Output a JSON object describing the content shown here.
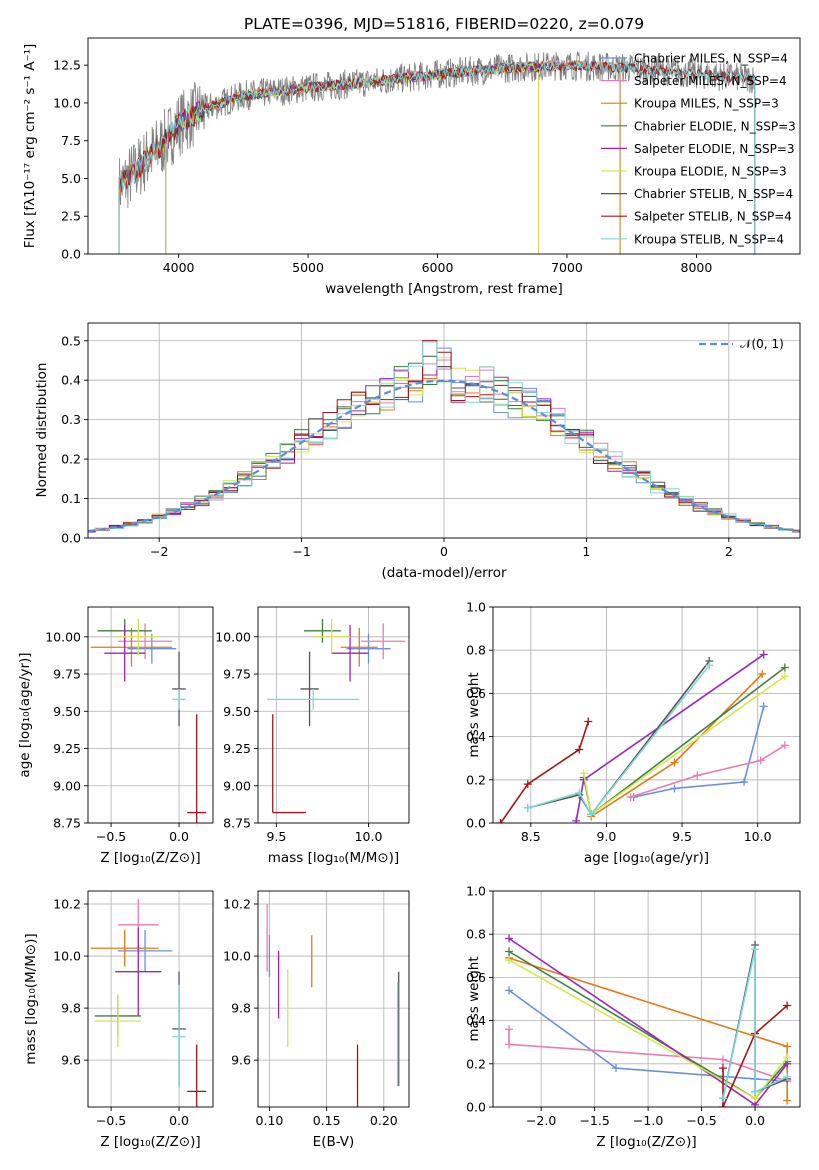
{
  "colors": {
    "chabrier_miles": "#6a8fe0",
    "salpeter_miles": "#e87bb5",
    "kroupa_miles": "#e07b18",
    "chabrier_elodie": "#3f7f3f",
    "salpeter_elodie": "#9b26b6",
    "kroupa_elodie": "#d6e64d",
    "chabrier_stelib": "#555555",
    "salpeter_stelib": "#a0151a",
    "kroupa_stelib": "#7fd8d8",
    "gauss": "#5b8ed8",
    "spectrum": "#808080"
  },
  "chart_data": [
    {
      "id": "spectrum",
      "type": "line",
      "title": "PLATE=0396, MJD=51816, FIBERID=0220, z=0.079",
      "xlabel": "wavelength [Angstrom, rest frame]",
      "ylabel": "Flux [fλ10⁻¹⁷ erg cm⁻² s⁻¹ A⁻¹]",
      "xlim": [
        3300,
        8800
      ],
      "ylim": [
        0,
        14.3
      ],
      "xticks": [
        "4000",
        "5000",
        "6000",
        "7000",
        "8000"
      ],
      "yticks": [
        "0.0",
        "2.5",
        "5.0",
        "7.5",
        "10.0",
        "12.5"
      ],
      "grid": false,
      "legend_position": "right",
      "legend": [
        "Chabrier MILES, N_SSP=4",
        "Salpeter MILES, N_SSP=4",
        "Kroupa MILES, N_SSP=3",
        "Chabrier ELODIE, N_SSP=3",
        "Salpeter ELODIE, N_SSP=3",
        "Kroupa ELODIE, N_SSP=3",
        "Chabrier STELIB, N_SSP=4",
        "Salpeter STELIB, N_SSP=4",
        "Kroupa STELIB, N_SSP=4"
      ],
      "data_trend": {
        "wavelength": [
          3550,
          3700,
          3900,
          4000,
          4200,
          4500,
          5000,
          5500,
          6000,
          6500,
          7000,
          7500,
          8000,
          8450
        ],
        "flux": [
          4.5,
          5.8,
          7.5,
          8.6,
          9.6,
          10.5,
          11.0,
          11.4,
          11.9,
          12.3,
          12.5,
          12.3,
          11.9,
          11.6
        ]
      }
    },
    {
      "id": "residuals",
      "type": "histogram",
      "xlabel": "(data-model)/error",
      "ylabel": "Normed distribution",
      "xlim": [
        -2.5,
        2.5
      ],
      "ylim": [
        0,
        0.545
      ],
      "xticks": [
        "−2",
        "−1",
        "0",
        "1",
        "2"
      ],
      "yticks": [
        "0.0",
        "0.1",
        "0.2",
        "0.3",
        "0.4",
        "0.5"
      ],
      "grid": true,
      "legend": [
        "𝒩(0, 1)"
      ],
      "legend_position": "top-right",
      "bin_width": 0.1,
      "reference_curve": "normal(0,1)"
    },
    {
      "id": "age_vs_Z",
      "type": "errorbar",
      "xlabel": "Z [log₁₀(Z/Z⊙)]",
      "ylabel": "age  [log₁₀(age/yr)]",
      "xlim": [
        -0.67,
        0.25
      ],
      "ylim": [
        8.75,
        10.2
      ],
      "xticks": [
        "−0.5",
        "0.0"
      ],
      "yticks": [
        "8.75",
        "9.00",
        "9.25",
        "9.50",
        "9.75",
        "10.00"
      ],
      "grid": true,
      "points": [
        {
          "c": "chabrier_miles",
          "x": -0.2,
          "xerr": 0.18,
          "y": 9.92,
          "yerr": 0.1
        },
        {
          "c": "salpeter_miles",
          "x": -0.25,
          "xerr": 0.2,
          "y": 9.97,
          "yerr": 0.12
        },
        {
          "c": "kroupa_miles",
          "x": -0.35,
          "xerr": 0.3,
          "y": 9.93,
          "yerr": 0.13
        },
        {
          "c": "chabrier_elodie",
          "x": -0.4,
          "xerr": 0.2,
          "y": 10.04,
          "yerr": 0.08
        },
        {
          "c": "salpeter_elodie",
          "x": -0.4,
          "xerr": 0.15,
          "y": 9.89,
          "yerr": 0.19
        },
        {
          "c": "kroupa_elodie",
          "x": -0.3,
          "xerr": 0.15,
          "y": 10.0,
          "yerr": 0.12
        },
        {
          "c": "chabrier_stelib",
          "x": 0.0,
          "xerr": 0.05,
          "y": 9.65,
          "yerr": 0.25
        },
        {
          "c": "salpeter_stelib",
          "x": 0.13,
          "xerr": 0.07,
          "y": 8.82,
          "yerr": 0.66
        },
        {
          "c": "kroupa_stelib",
          "x": 0.0,
          "xerr": 0.05,
          "y": 9.58,
          "yerr": 0.07
        }
      ]
    },
    {
      "id": "age_vs_mass",
      "type": "errorbar",
      "xlabel": "mass [log₁₀(M/M⊙)]",
      "ylabel": "",
      "xlim": [
        9.4,
        10.22
      ],
      "ylim": [
        8.75,
        10.2
      ],
      "xticks": [
        "9.5",
        "10.0"
      ],
      "yticks": [
        "8.75",
        "9.00",
        "9.25",
        "9.50",
        "9.75",
        "10.00"
      ],
      "grid": true,
      "points": [
        {
          "c": "chabrier_miles",
          "x": 10.0,
          "xerr": 0.12,
          "y": 9.92,
          "yerr": 0.1
        },
        {
          "c": "salpeter_miles",
          "x": 10.08,
          "xerr": 0.12,
          "y": 9.97,
          "yerr": 0.12
        },
        {
          "c": "kroupa_miles",
          "x": 9.95,
          "xerr": 0.1,
          "y": 9.93,
          "yerr": 0.13
        },
        {
          "c": "chabrier_elodie",
          "x": 9.75,
          "xerr": 0.1,
          "y": 10.04,
          "yerr": 0.08
        },
        {
          "c": "salpeter_elodie",
          "x": 9.9,
          "xerr": 0.1,
          "y": 9.89,
          "yerr": 0.19
        },
        {
          "c": "kroupa_elodie",
          "x": 9.8,
          "xerr": 0.1,
          "y": 10.0,
          "yerr": 0.12
        },
        {
          "c": "chabrier_stelib",
          "x": 9.68,
          "xerr": 0.05,
          "y": 9.65,
          "yerr": 0.25
        },
        {
          "c": "salpeter_stelib",
          "x": 9.48,
          "xerr": 0.0,
          "y": 9.15,
          "yerr": 0.33
        },
        {
          "c": "salpeter_stelib",
          "x": 9.57,
          "xerr": 0.09,
          "y": 8.82,
          "yerr": 0.0
        },
        {
          "c": "kroupa_stelib",
          "x": 9.7,
          "xerr": 0.25,
          "y": 9.58,
          "yerr": 0.07
        }
      ]
    },
    {
      "id": "mass_weight_vs_age",
      "type": "line",
      "xlabel": "age  [log₁₀(age/yr)]",
      "ylabel": "mass weight",
      "xlim": [
        8.25,
        10.28
      ],
      "ylim": [
        0,
        1.0
      ],
      "xticks": [
        "8.5",
        "9.0",
        "9.5",
        "10.0"
      ],
      "yticks": [
        "0.0",
        "0.2",
        "0.4",
        "0.6",
        "0.8",
        "1.0"
      ],
      "grid": true,
      "series": [
        {
          "c": "chabrier_miles",
          "x": [
            9.18,
            9.45,
            9.91,
            10.04
          ],
          "y": [
            0.12,
            0.16,
            0.19,
            0.54
          ]
        },
        {
          "c": "salpeter_miles",
          "x": [
            9.16,
            9.6,
            10.02,
            10.18
          ],
          "y": [
            0.12,
            0.22,
            0.29,
            0.36
          ]
        },
        {
          "c": "kroupa_miles",
          "x": [
            8.9,
            9.45,
            10.03
          ],
          "y": [
            0.03,
            0.28,
            0.69
          ]
        },
        {
          "c": "chabrier_elodie",
          "x": [
            8.85,
            8.9,
            10.18
          ],
          "y": [
            0.21,
            0.04,
            0.72
          ]
        },
        {
          "c": "salpeter_elodie",
          "x": [
            8.8,
            8.85,
            10.04
          ],
          "y": [
            0.01,
            0.2,
            0.78
          ]
        },
        {
          "c": "kroupa_elodie",
          "x": [
            8.85,
            8.9,
            10.18
          ],
          "y": [
            0.23,
            0.04,
            0.68
          ]
        },
        {
          "c": "chabrier_stelib",
          "x": [
            8.48,
            8.82,
            8.9,
            9.68
          ],
          "y": [
            0.07,
            0.13,
            0.04,
            0.75
          ]
        },
        {
          "c": "salpeter_stelib",
          "x": [
            8.3,
            8.48,
            8.82,
            8.88
          ],
          "y": [
            0.0,
            0.18,
            0.34,
            0.47
          ]
        },
        {
          "c": "kroupa_stelib",
          "x": [
            8.48,
            8.82,
            8.9,
            9.68
          ],
          "y": [
            0.07,
            0.14,
            0.04,
            0.73
          ]
        }
      ]
    },
    {
      "id": "mass_vs_Z",
      "type": "errorbar",
      "xlabel": "Z [log₁₀(Z/Z⊙)]",
      "ylabel": "mass [log₁₀(M/M⊙)]",
      "xlim": [
        -0.67,
        0.25
      ],
      "ylim": [
        9.42,
        10.25
      ],
      "xticks": [
        "−0.5",
        "0.0"
      ],
      "yticks": [
        "9.6",
        "9.8",
        "10.0",
        "10.2"
      ],
      "grid": true,
      "points": [
        {
          "c": "chabrier_miles",
          "x": -0.25,
          "xerr": 0.2,
          "y": 10.02,
          "yerr": 0.08
        },
        {
          "c": "salpeter_miles",
          "x": -0.3,
          "xerr": 0.15,
          "y": 10.12,
          "yerr": 0.1
        },
        {
          "c": "kroupa_miles",
          "x": -0.4,
          "xerr": 0.25,
          "y": 10.03,
          "yerr": 0.07
        },
        {
          "c": "chabrier_elodie",
          "x": -0.45,
          "xerr": 0.17,
          "y": 9.77,
          "yerr": 0.08
        },
        {
          "c": "salpeter_elodie",
          "x": -0.3,
          "xerr": 0.17,
          "y": 9.94,
          "yerr": 0.17
        },
        {
          "c": "kroupa_elodie",
          "x": -0.45,
          "xerr": 0.17,
          "y": 9.75,
          "yerr": 0.1
        },
        {
          "c": "chabrier_stelib",
          "x": 0.0,
          "xerr": 0.05,
          "y": 9.72,
          "yerr": 0.22
        },
        {
          "c": "salpeter_stelib",
          "x": 0.13,
          "xerr": 0.07,
          "y": 9.48,
          "yerr": 0.18
        },
        {
          "c": "kroupa_stelib",
          "x": 0.0,
          "xerr": 0.05,
          "y": 9.69,
          "yerr": 0.2
        }
      ]
    },
    {
      "id": "mass_vs_ebv",
      "type": "errorbar",
      "xlabel": "E(B-V)",
      "ylabel": "",
      "xlim": [
        0.09,
        0.222
      ],
      "ylim": [
        9.42,
        10.25
      ],
      "xticks": [
        "0.10",
        "0.15",
        "0.20"
      ],
      "yticks": [
        "9.6",
        "9.8",
        "10.0",
        "10.2"
      ],
      "grid": true,
      "points": [
        {
          "c": "chabrier_miles",
          "x": 0.1,
          "xerr": 0.0,
          "y": 10.0,
          "yerr": 0.08
        },
        {
          "c": "salpeter_miles",
          "x": 0.098,
          "xerr": 0.0,
          "y": 10.07,
          "yerr": 0.13
        },
        {
          "c": "kroupa_miles",
          "x": 0.137,
          "xerr": 0.0,
          "y": 9.98,
          "yerr": 0.1
        },
        {
          "c": "salpeter_elodie",
          "x": 0.108,
          "xerr": 0.0,
          "y": 9.89,
          "yerr": 0.13
        },
        {
          "c": "kroupa_elodie",
          "x": 0.116,
          "xerr": 0.0,
          "y": 9.8,
          "yerr": 0.15
        },
        {
          "c": "salpeter_stelib",
          "x": 0.177,
          "xerr": 0.0,
          "y": 9.5,
          "yerr": 0.16
        },
        {
          "c": "chabrier_stelib",
          "x": 0.213,
          "xerr": 0.0,
          "y": 9.72,
          "yerr": 0.22
        },
        {
          "c": "kroupa_stelib",
          "x": 0.212,
          "xerr": 0.0,
          "y": 9.7,
          "yerr": 0.2
        }
      ]
    },
    {
      "id": "mass_weight_vs_Z",
      "type": "line",
      "xlabel": "Z [log₁₀(Z/Z⊙)]",
      "ylabel": "mass weight",
      "xlim": [
        -2.45,
        0.42
      ],
      "ylim": [
        0,
        1.0
      ],
      "xticks": [
        "−2.0",
        "−1.5",
        "−1.0",
        "−0.5",
        "0.0"
      ],
      "yticks": [
        "0.0",
        "0.2",
        "0.4",
        "0.6",
        "0.8",
        "1.0"
      ],
      "grid": true,
      "series": [
        {
          "c": "chabrier_miles",
          "x": [
            -2.3,
            -1.3,
            0.0,
            0.3
          ],
          "y": [
            0.54,
            0.18,
            0.13,
            0.12
          ]
        },
        {
          "c": "salpeter_miles",
          "x": [
            -2.3,
            -2.3,
            -0.3,
            0.3
          ],
          "y": [
            0.36,
            0.29,
            0.22,
            0.12
          ]
        },
        {
          "c": "kroupa_miles",
          "x": [
            -2.3,
            0.3,
            0.3
          ],
          "y": [
            0.69,
            0.28,
            0.03
          ]
        },
        {
          "c": "chabrier_elodie",
          "x": [
            -2.3,
            0.0,
            0.3
          ],
          "y": [
            0.72,
            0.04,
            0.21
          ]
        },
        {
          "c": "salpeter_elodie",
          "x": [
            -2.3,
            0.0,
            0.3
          ],
          "y": [
            0.78,
            0.01,
            0.2
          ]
        },
        {
          "c": "kroupa_elodie",
          "x": [
            -2.3,
            0.0,
            0.3
          ],
          "y": [
            0.68,
            0.04,
            0.23
          ]
        },
        {
          "c": "chabrier_stelib",
          "x": [
            -0.3,
            0.0,
            0.0,
            0.3
          ],
          "y": [
            0.04,
            0.75,
            0.07,
            0.13
          ]
        },
        {
          "c": "salpeter_stelib",
          "x": [
            -0.3,
            -0.3,
            0.0,
            0.3
          ],
          "y": [
            0.18,
            0.0,
            0.34,
            0.47
          ]
        },
        {
          "c": "kroupa_stelib",
          "x": [
            -0.3,
            0.0,
            0.0,
            0.3
          ],
          "y": [
            0.04,
            0.73,
            0.07,
            0.14
          ]
        }
      ]
    }
  ]
}
